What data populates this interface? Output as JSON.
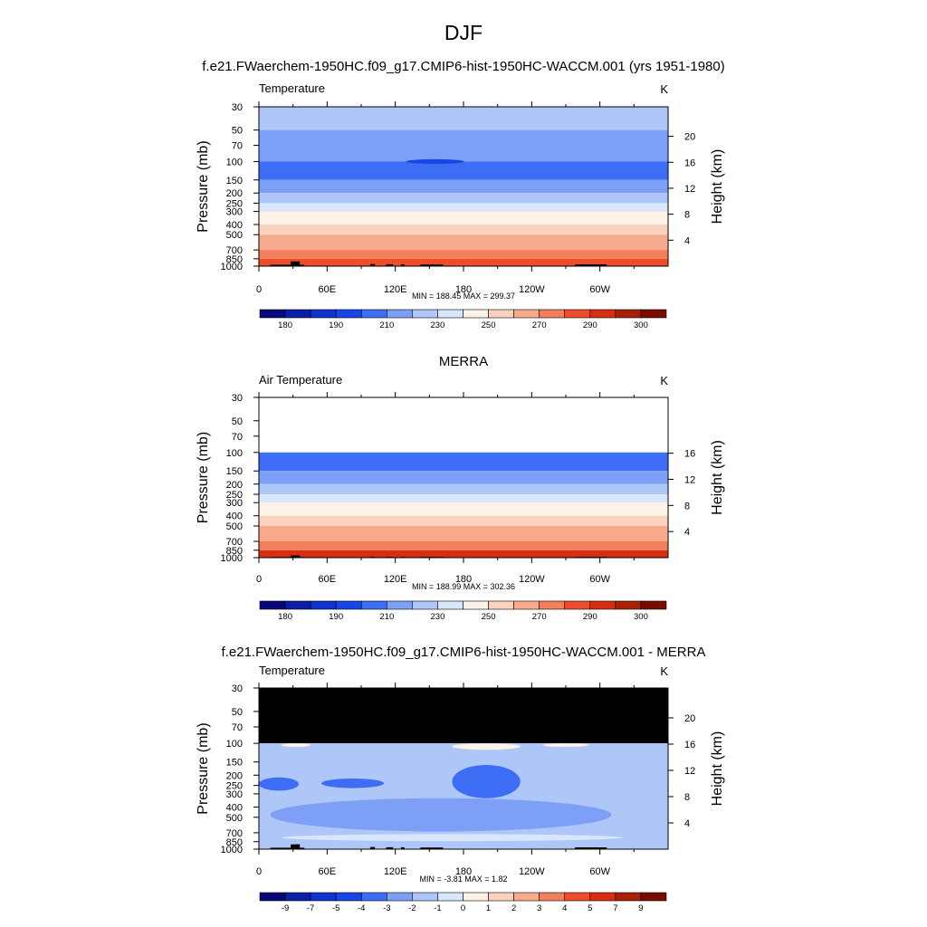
{
  "title": "DJF",
  "colors": {
    "seasonal_palette": [
      "#08087a",
      "#0a1fa6",
      "#0f33cc",
      "#1846e6",
      "#3d6cf5",
      "#7da0f6",
      "#aec6f8",
      "#d7e6fb",
      "#fdf2e8",
      "#fbd2bd",
      "#f8ab8c",
      "#f37e5c",
      "#ee4d2b",
      "#d72e12",
      "#a92008",
      "#7a0b00"
    ],
    "diff_palette": [
      "#08087a",
      "#0a1fa6",
      "#0f33cc",
      "#1846e6",
      "#3d6cf5",
      "#7da0f6",
      "#aec6f8",
      "#d7e6fb",
      "#fdf2e8",
      "#fbd2bd",
      "#f8ab8c",
      "#f37e5c",
      "#ee4d2b",
      "#d72e12",
      "#a92008",
      "#7a0b00"
    ],
    "missing": "#000000"
  },
  "panels": [
    {
      "name": "model-panel",
      "heading": "f.e21.FWaerchem-1950HC.f09_g17.CMIP6-hist-1950HC-WACCM.001 (yrs 1951-1980)",
      "left_label": "Temperature",
      "units": "K",
      "ylabel": "Pressure (mb)",
      "ylabel_right": "Height (km)",
      "stats": "MIN = 188.45  MAX = 299.37"
    },
    {
      "name": "obs-panel",
      "heading": "MERRA",
      "left_label": "Air Temperature",
      "units": "K",
      "ylabel": "Pressure (mb)",
      "ylabel_right": "Height (km)",
      "stats": "MIN = 188.99  MAX = 302.36"
    },
    {
      "name": "diff-panel",
      "heading": "f.e21.FWaerchem-1950HC.f09_g17.CMIP6-hist-1950HC-WACCM.001 - MERRA",
      "left_label": "Temperature",
      "units": "K",
      "ylabel": "Pressure (mb)",
      "ylabel_right": "Height (km)",
      "stats": "MIN =  -3.81  MAX =   1.82"
    }
  ],
  "chart_data": [
    {
      "type": "heatmap",
      "panel": "model-panel",
      "title": "Temperature",
      "xlabel": "",
      "ylabel": "Pressure (mb)",
      "y2label": "Height (km)",
      "x_ticks": [
        "0",
        "60E",
        "120E",
        "180",
        "120W",
        "60W"
      ],
      "x_tick_lon": [
        0,
        60,
        120,
        180,
        240,
        300
      ],
      "xlim": [
        0,
        360
      ],
      "y_ticks": [
        "30",
        "50",
        "70",
        "100",
        "150",
        "200",
        "250",
        "300",
        "400",
        "500",
        "700",
        "850",
        "1000"
      ],
      "y_tick_p": [
        30,
        50,
        70,
        100,
        150,
        200,
        250,
        300,
        400,
        500,
        700,
        850,
        1000
      ],
      "ylim": [
        1000,
        30
      ],
      "y2_ticks": [
        "20",
        "16",
        "12",
        "8",
        "4"
      ],
      "y2_tick_km": [
        20,
        16,
        12,
        8,
        4
      ],
      "data_top_p": 30,
      "cold_core": {
        "lon_center": 155,
        "pressure": 100,
        "value": 185
      },
      "profile": [
        {
          "p": 30,
          "value": 213
        },
        {
          "p": 50,
          "value": 207
        },
        {
          "p": 70,
          "value": 201
        },
        {
          "p": 100,
          "value": 196
        },
        {
          "p": 150,
          "value": 200
        },
        {
          "p": 200,
          "value": 212
        },
        {
          "p": 250,
          "value": 222
        },
        {
          "p": 300,
          "value": 230
        },
        {
          "p": 400,
          "value": 244
        },
        {
          "p": 500,
          "value": 254
        },
        {
          "p": 700,
          "value": 268
        },
        {
          "p": 850,
          "value": 279
        },
        {
          "p": 1000,
          "value": 289
        }
      ],
      "colorbar_labels": [
        "180",
        "190",
        "210",
        "230",
        "250",
        "270",
        "290",
        "300"
      ],
      "levels": [
        176,
        180,
        185,
        190,
        200,
        210,
        220,
        230,
        240,
        250,
        260,
        270,
        280,
        290,
        295,
        300
      ],
      "min": 188.45,
      "max": 299.37
    },
    {
      "type": "heatmap",
      "panel": "obs-panel",
      "title": "Air Temperature",
      "xlabel": "",
      "ylabel": "Pressure (mb)",
      "y2label": "Height (km)",
      "x_ticks": [
        "0",
        "60E",
        "120E",
        "180",
        "120W",
        "60W"
      ],
      "x_tick_lon": [
        0,
        60,
        120,
        180,
        240,
        300
      ],
      "xlim": [
        0,
        360
      ],
      "y_ticks": [
        "30",
        "50",
        "70",
        "100",
        "150",
        "200",
        "250",
        "300",
        "400",
        "500",
        "700",
        "850",
        "1000"
      ],
      "y_tick_p": [
        30,
        50,
        70,
        100,
        150,
        200,
        250,
        300,
        400,
        500,
        700,
        850,
        1000
      ],
      "ylim": [
        1000,
        30
      ],
      "y2_ticks": [
        "16",
        "12",
        "8",
        "4"
      ],
      "y2_tick_km": [
        16,
        12,
        8,
        4
      ],
      "data_top_p": 100,
      "profile": [
        {
          "p": 100,
          "value": 196
        },
        {
          "p": 150,
          "value": 200
        },
        {
          "p": 200,
          "value": 212
        },
        {
          "p": 250,
          "value": 222
        },
        {
          "p": 300,
          "value": 230
        },
        {
          "p": 400,
          "value": 244
        },
        {
          "p": 500,
          "value": 254
        },
        {
          "p": 700,
          "value": 268
        },
        {
          "p": 850,
          "value": 280
        },
        {
          "p": 1000,
          "value": 291
        }
      ],
      "colorbar_labels": [
        "180",
        "190",
        "210",
        "230",
        "250",
        "270",
        "290",
        "300"
      ],
      "levels": [
        176,
        180,
        185,
        190,
        200,
        210,
        220,
        230,
        240,
        250,
        260,
        270,
        280,
        290,
        295,
        300
      ],
      "min": 188.99,
      "max": 302.36
    },
    {
      "type": "heatmap",
      "panel": "diff-panel",
      "title": "Temperature",
      "xlabel": "",
      "ylabel": "Pressure (mb)",
      "y2label": "Height (km)",
      "x_ticks": [
        "0",
        "60E",
        "120E",
        "180",
        "120W",
        "60W"
      ],
      "x_tick_lon": [
        0,
        60,
        120,
        180,
        240,
        300
      ],
      "xlim": [
        0,
        360
      ],
      "y_ticks": [
        "30",
        "50",
        "70",
        "100",
        "150",
        "200",
        "250",
        "300",
        "400",
        "500",
        "700",
        "850",
        "1000"
      ],
      "y_tick_p": [
        30,
        50,
        70,
        100,
        150,
        200,
        250,
        300,
        400,
        500,
        700,
        850,
        1000
      ],
      "ylim": [
        1000,
        30
      ],
      "y2_ticks": [
        "20",
        "16",
        "12",
        "8",
        "4"
      ],
      "y2_tick_km": [
        20,
        16,
        12,
        8,
        4
      ],
      "missing_above_p": 100,
      "background_value": -1.5,
      "regions": [
        {
          "lon": [
            10,
            310
          ],
          "p": [
            330,
            680
          ],
          "value": -2.5
        },
        {
          "lon": [
            0,
            35
          ],
          "p": [
            210,
            280
          ],
          "value": -3.5
        },
        {
          "lon": [
            55,
            110
          ],
          "p": [
            215,
            265
          ],
          "value": -3.5
        },
        {
          "lon": [
            170,
            230
          ],
          "p": [
            160,
            330
          ],
          "value": -3.5
        },
        {
          "lon": [
            20,
            320
          ],
          "p": [
            720,
            840
          ],
          "value": -0.5
        },
        {
          "lon": [
            170,
            230
          ],
          "p": [
            100,
            115
          ],
          "value": 0.5
        },
        {
          "lon": [
            20,
            45
          ],
          "p": [
            100,
            108
          ],
          "value": 0.5
        },
        {
          "lon": [
            250,
            290
          ],
          "p": [
            100,
            108
          ],
          "value": 0.5
        }
      ],
      "colorbar_labels": [
        "-9",
        "-7",
        "-5",
        "-4",
        "-3",
        "-2",
        "-1",
        "0",
        "1",
        "2",
        "3",
        "4",
        "5",
        "7",
        "9"
      ],
      "levels": [
        -9,
        -7,
        -5,
        -4,
        -3,
        -2,
        -1,
        0,
        1,
        2,
        3,
        4,
        5,
        7,
        9
      ],
      "min": -3.81,
      "max": 1.82
    }
  ],
  "topography": [
    {
      "lon": [
        10,
        40
      ],
      "p_top": 970
    },
    {
      "lon": [
        28,
        36
      ],
      "p_top": 900
    },
    {
      "lon": [
        98,
        102
      ],
      "p_top": 955
    },
    {
      "lon": [
        112,
        118
      ],
      "p_top": 960
    },
    {
      "lon": [
        125,
        128
      ],
      "p_top": 960
    },
    {
      "lon": [
        142,
        162
      ],
      "p_top": 965
    },
    {
      "lon": [
        278,
        306
      ],
      "p_top": 962
    }
  ]
}
